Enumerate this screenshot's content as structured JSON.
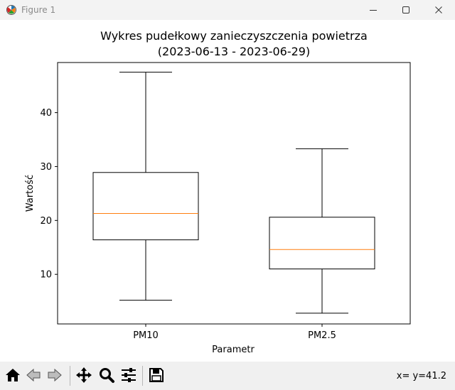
{
  "window": {
    "title": "Figure 1",
    "icon": "matplotlib-icon",
    "controls": [
      "minimize-icon",
      "maximize-icon",
      "close-icon"
    ]
  },
  "toolbar": {
    "buttons": [
      "home-icon",
      "back-icon",
      "forward-icon",
      "pan-icon",
      "zoom-icon",
      "configure-subplots-icon",
      "save-icon"
    ],
    "coordinates": "x= y=41.2"
  },
  "chart_data": {
    "type": "box",
    "title": "Wykres pudełkowy zanieczyszczenia powietrza",
    "subtitle": "(2023-06-13 - 2023-06-29)",
    "xlabel": "Parametr",
    "ylabel": "Wartość",
    "categories": [
      "PM10",
      "PM2.5"
    ],
    "boxes": [
      {
        "name": "PM10",
        "whisker_low": 5.2,
        "q1": 16.4,
        "median": 21.3,
        "q3": 28.9,
        "whisker_high": 47.5
      },
      {
        "name": "PM2.5",
        "whisker_low": 2.8,
        "q1": 11.0,
        "median": 14.6,
        "q3": 20.6,
        "whisker_high": 33.3
      }
    ],
    "ylim": [
      0.8,
      49.3
    ],
    "yticks": [
      10,
      20,
      30,
      40
    ],
    "grid": false,
    "colors": {
      "box": "#000000",
      "median": "#ff7f0e"
    }
  }
}
